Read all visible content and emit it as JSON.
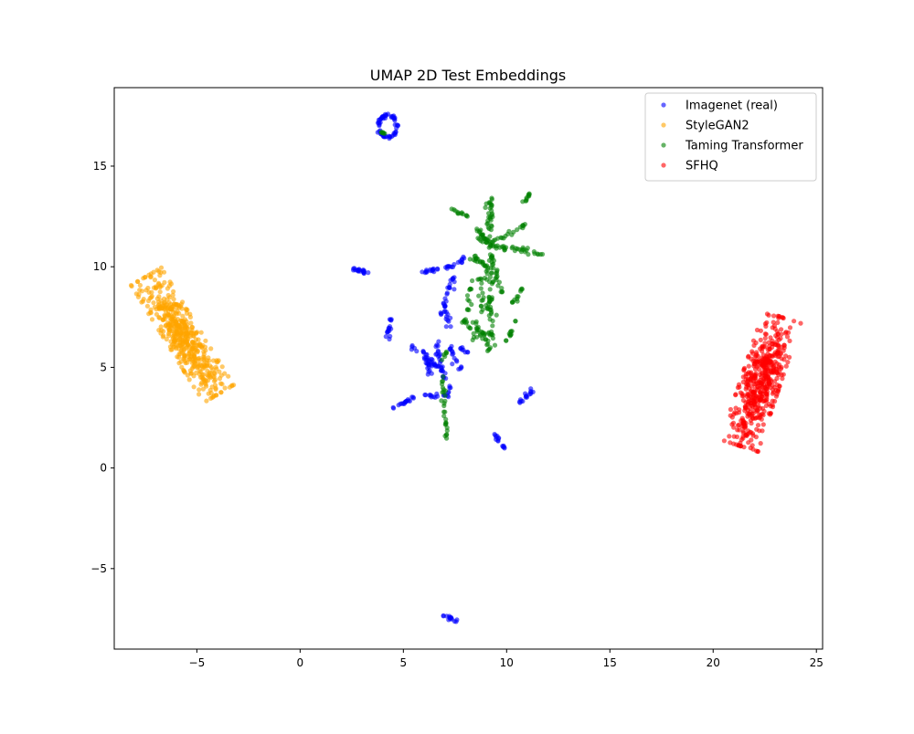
{
  "chart_data": {
    "type": "scatter",
    "title": "UMAP 2D Test Embeddings",
    "xlabel": "",
    "ylabel": "",
    "xlim": [
      -9,
      25.3
    ],
    "ylim": [
      -9,
      18.9
    ],
    "xticks": [
      -5,
      0,
      5,
      10,
      15,
      20,
      25
    ],
    "xtick_labels": [
      "−5",
      "0",
      "5",
      "10",
      "15",
      "20",
      "25"
    ],
    "yticks": [
      -5,
      0,
      5,
      10,
      15
    ],
    "ytick_labels": [
      "−5",
      "0",
      "5",
      "10",
      "15"
    ],
    "legend_position": "top-right",
    "marker_alpha": 0.6,
    "series": [
      {
        "name": "Imagenet (real)",
        "color": "#0000ff",
        "clusters": [
          {
            "shape": "ring",
            "cx": 4.25,
            "cy": 17.0,
            "rx": 0.45,
            "ry": 0.55,
            "n": 60
          },
          {
            "shape": "segment",
            "from": [
              2.5,
              9.9
            ],
            "to": [
              3.3,
              9.7
            ],
            "width": 0.1,
            "n": 20
          },
          {
            "shape": "segment",
            "from": [
              5.8,
              9.7
            ],
            "to": [
              7.6,
              10.1
            ],
            "width": 0.08,
            "n": 24
          },
          {
            "shape": "segment",
            "from": [
              7.6,
              10.1
            ],
            "to": [
              8.0,
              10.5
            ],
            "width": 0.08,
            "n": 8
          },
          {
            "shape": "segment",
            "from": [
              4.4,
              7.4
            ],
            "to": [
              4.2,
              6.4
            ],
            "width": 0.1,
            "n": 16
          },
          {
            "shape": "segment",
            "from": [
              6.8,
              7.6
            ],
            "to": [
              7.4,
              9.5
            ],
            "width": 0.12,
            "n": 22
          },
          {
            "shape": "segment",
            "from": [
              7.0,
              8.4
            ],
            "to": [
              7.2,
              7.0
            ],
            "width": 0.12,
            "n": 14
          },
          {
            "shape": "segment",
            "from": [
              5.2,
              6.2
            ],
            "to": [
              6.7,
              5.0
            ],
            "width": 0.15,
            "n": 28
          },
          {
            "shape": "segment",
            "from": [
              6.0,
              6.0
            ],
            "to": [
              6.3,
              4.6
            ],
            "width": 0.12,
            "n": 14
          },
          {
            "shape": "segment",
            "from": [
              6.6,
              6.3
            ],
            "to": [
              7.0,
              4.3
            ],
            "width": 0.15,
            "n": 26
          },
          {
            "shape": "segment",
            "from": [
              7.2,
              6.2
            ],
            "to": [
              7.8,
              4.8
            ],
            "width": 0.12,
            "n": 16
          },
          {
            "shape": "segment",
            "from": [
              7.8,
              6.0
            ],
            "to": [
              8.2,
              5.7
            ],
            "width": 0.1,
            "n": 8
          },
          {
            "shape": "segment",
            "from": [
              4.5,
              3.0
            ],
            "to": [
              5.5,
              3.5
            ],
            "width": 0.1,
            "n": 18
          },
          {
            "shape": "segment",
            "from": [
              6.0,
              3.6
            ],
            "to": [
              7.3,
              3.6
            ],
            "width": 0.08,
            "n": 14
          },
          {
            "shape": "segment",
            "from": [
              7.3,
              4.2
            ],
            "to": [
              7.1,
              3.5
            ],
            "width": 0.08,
            "n": 6
          },
          {
            "shape": "segment",
            "from": [
              10.6,
              3.2
            ],
            "to": [
              11.3,
              3.9
            ],
            "width": 0.1,
            "n": 16
          },
          {
            "shape": "segment",
            "from": [
              9.4,
              1.7
            ],
            "to": [
              9.9,
              0.9
            ],
            "width": 0.08,
            "n": 14
          },
          {
            "shape": "segment",
            "from": [
              6.9,
              -7.3
            ],
            "to": [
              7.6,
              -7.6
            ],
            "width": 0.08,
            "n": 14
          }
        ]
      },
      {
        "name": "StyleGAN2",
        "color": "#ffa500",
        "clusters": [
          {
            "shape": "ellipse",
            "cx": -5.7,
            "cy": 6.6,
            "half_length": 3.4,
            "half_width": 0.85,
            "angle_deg": -59,
            "n": 520
          }
        ]
      },
      {
        "name": "Taming Transformer",
        "color": "#008000",
        "clusters": [
          {
            "shape": "segment",
            "from": [
              3.9,
              16.7
            ],
            "to": [
              4.1,
              16.6
            ],
            "width": 0.05,
            "n": 6
          },
          {
            "shape": "segment",
            "from": [
              9.2,
              13.8
            ],
            "to": [
              9.2,
              5.8
            ],
            "width": 0.2,
            "n": 90
          },
          {
            "shape": "segment",
            "from": [
              10.8,
              13.2
            ],
            "to": [
              11.2,
              13.7
            ],
            "width": 0.08,
            "n": 10
          },
          {
            "shape": "segment",
            "from": [
              7.3,
              12.9
            ],
            "to": [
              8.3,
              12.4
            ],
            "width": 0.08,
            "n": 12
          },
          {
            "shape": "segment",
            "from": [
              9.4,
              11.2
            ],
            "to": [
              10.9,
              12.1
            ],
            "width": 0.1,
            "n": 16
          },
          {
            "shape": "segment",
            "from": [
              8.4,
              12.1
            ],
            "to": [
              9.2,
              11.1
            ],
            "width": 0.12,
            "n": 14
          },
          {
            "shape": "segment",
            "from": [
              8.6,
              11.4
            ],
            "to": [
              10.0,
              10.9
            ],
            "width": 0.2,
            "n": 30
          },
          {
            "shape": "segment",
            "from": [
              10.2,
              11.0
            ],
            "to": [
              11.8,
              10.6
            ],
            "width": 0.15,
            "n": 20
          },
          {
            "shape": "segment",
            "from": [
              8.3,
              10.5
            ],
            "to": [
              9.4,
              9.8
            ],
            "width": 0.2,
            "n": 24
          },
          {
            "shape": "segment",
            "from": [
              9.3,
              10.5
            ],
            "to": [
              9.8,
              8.6
            ],
            "width": 0.15,
            "n": 16
          },
          {
            "shape": "segment",
            "from": [
              8.2,
              9.4
            ],
            "to": [
              8.2,
              7.8
            ],
            "width": 0.12,
            "n": 12
          },
          {
            "shape": "segment",
            "from": [
              8.8,
              9.5
            ],
            "to": [
              8.8,
              7.5
            ],
            "width": 0.15,
            "n": 16
          },
          {
            "shape": "segment",
            "from": [
              10.3,
              8.2
            ],
            "to": [
              10.9,
              9.1
            ],
            "width": 0.1,
            "n": 12
          },
          {
            "shape": "segment",
            "from": [
              7.9,
              7.4
            ],
            "to": [
              8.5,
              6.4
            ],
            "width": 0.15,
            "n": 14
          },
          {
            "shape": "segment",
            "from": [
              8.4,
              7.3
            ],
            "to": [
              9.0,
              6.3
            ],
            "width": 0.2,
            "n": 20
          },
          {
            "shape": "segment",
            "from": [
              10.0,
              6.3
            ],
            "to": [
              10.5,
              7.3
            ],
            "width": 0.1,
            "n": 12
          },
          {
            "shape": "segment",
            "from": [
              6.9,
              4.6
            ],
            "to": [
              7.1,
              1.4
            ],
            "width": 0.1,
            "n": 28
          },
          {
            "shape": "segment",
            "from": [
              6.8,
              5.2
            ],
            "to": [
              7.2,
              5.8
            ],
            "width": 0.1,
            "n": 6
          }
        ]
      },
      {
        "name": "SFHQ",
        "color": "#ff0000",
        "clusters": [
          {
            "shape": "ellipse",
            "cx": 22.3,
            "cy": 4.3,
            "half_length": 3.35,
            "half_width": 0.95,
            "angle_deg": 72,
            "n": 520
          }
        ]
      }
    ]
  }
}
